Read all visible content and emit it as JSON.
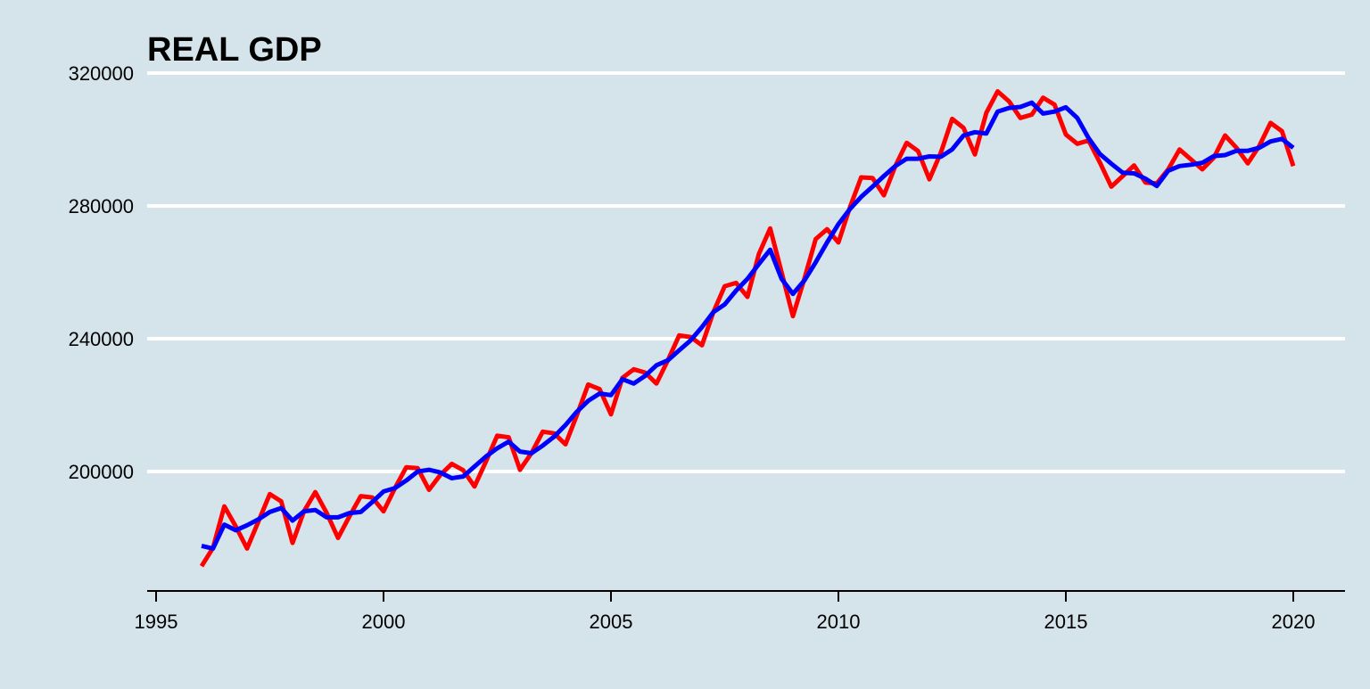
{
  "chart_data": {
    "type": "line",
    "title": "REAL GDP",
    "xlabel": "",
    "ylabel": "",
    "xlim": [
      1995,
      2021.2
    ],
    "ylim": [
      170000,
      321000
    ],
    "x_ticks": [
      1995,
      2000,
      2005,
      2010,
      2015,
      2020
    ],
    "x_tick_labels": [
      "1995",
      "2000",
      "2005",
      "2010",
      "2015",
      "2020"
    ],
    "y_ticks": [
      200000,
      240000,
      280000,
      320000
    ],
    "y_tick_labels": [
      "200000",
      "240000",
      "280000",
      "320000"
    ],
    "grid": "horizontal",
    "background_color": "#d5e4eb",
    "grid_color": "#ffffff",
    "series": [
      {
        "color": "#ff0000",
        "x": [
          1996.0,
          1996.25,
          1996.5,
          1996.75,
          1997.0,
          1997.25,
          1997.5,
          1997.75,
          1998.0,
          1998.25,
          1998.5,
          1998.75,
          1999.0,
          1999.25,
          1999.5,
          1999.75,
          2000.0,
          2000.25,
          2000.5,
          2000.75,
          2001.0,
          2001.25,
          2001.5,
          2001.75,
          2002.0,
          2002.25,
          2002.5,
          2002.75,
          2003.0,
          2003.25,
          2003.5,
          2003.75,
          2004.0,
          2004.25,
          2004.5,
          2004.75,
          2005.0,
          2005.25,
          2005.5,
          2005.75,
          2006.0,
          2006.25,
          2006.5,
          2006.75,
          2007.0,
          2007.25,
          2007.5,
          2007.75,
          2008.0,
          2008.25,
          2008.5,
          2008.75,
          2009.0,
          2009.25,
          2009.5,
          2009.75,
          2010.0,
          2010.25,
          2010.5,
          2010.75,
          2011.0,
          2011.25,
          2011.5,
          2011.75,
          2012.0,
          2012.25,
          2012.5,
          2012.75,
          2013.0,
          2013.25,
          2013.5,
          2013.75,
          2014.0,
          2014.25,
          2014.5,
          2014.75,
          2015.0,
          2015.25,
          2015.5,
          2015.75,
          2016.0,
          2016.25,
          2016.5,
          2016.75,
          2017.0,
          2017.25,
          2017.5,
          2017.75,
          2018.0,
          2018.25,
          2018.5,
          2018.75,
          2019.0,
          2019.25,
          2019.5,
          2019.75,
          2020.0
        ],
        "values": [
          171500,
          177000,
          189500,
          183500,
          176800,
          185000,
          193200,
          191000,
          178500,
          188000,
          193800,
          187500,
          180000,
          186500,
          192600,
          192200,
          188000,
          195000,
          201300,
          201000,
          194500,
          199000,
          202300,
          200400,
          195500,
          203000,
          210800,
          210300,
          200500,
          205500,
          212000,
          211500,
          208200,
          217000,
          226200,
          224800,
          217200,
          228200,
          230800,
          229800,
          226500,
          233500,
          241000,
          240500,
          238000,
          248000,
          255800,
          256800,
          252600,
          265500,
          273200,
          260000,
          246800,
          258000,
          270000,
          273000,
          269000,
          279500,
          288600,
          288400,
          283200,
          292000,
          299000,
          296500,
          288000,
          296000,
          306200,
          303500,
          295500,
          308000,
          314500,
          311500,
          306500,
          307500,
          312600,
          310500,
          301500,
          298700,
          299700,
          293000,
          285800,
          289000,
          292200,
          287000,
          286800,
          291000,
          297000,
          294000,
          291000,
          294500,
          301200,
          297500,
          292800,
          298000,
          305000,
          302500,
          292000
        ]
      },
      {
        "color": "#0000ff",
        "x": [
          1996.0,
          1996.25,
          1996.5,
          1996.75,
          1997.0,
          1997.25,
          1997.5,
          1997.75,
          1998.0,
          1998.25,
          1998.5,
          1998.75,
          1999.0,
          1999.25,
          1999.5,
          1999.75,
          2000.0,
          2000.25,
          2000.5,
          2000.75,
          2001.0,
          2001.25,
          2001.5,
          2001.75,
          2002.0,
          2002.25,
          2002.5,
          2002.75,
          2003.0,
          2003.25,
          2003.5,
          2003.75,
          2004.0,
          2004.25,
          2004.5,
          2004.75,
          2005.0,
          2005.25,
          2005.5,
          2005.75,
          2006.0,
          2006.25,
          2006.5,
          2006.75,
          2007.0,
          2007.25,
          2007.5,
          2007.75,
          2008.0,
          2008.25,
          2008.5,
          2008.75,
          2009.0,
          2009.25,
          2009.5,
          2009.75,
          2010.0,
          2010.25,
          2010.5,
          2010.75,
          2011.0,
          2011.25,
          2011.5,
          2011.75,
          2012.0,
          2012.25,
          2012.5,
          2012.75,
          2013.0,
          2013.25,
          2013.5,
          2013.75,
          2014.0,
          2014.25,
          2014.5,
          2014.75,
          2015.0,
          2015.25,
          2015.5,
          2015.75,
          2016.0,
          2016.25,
          2016.5,
          2016.75,
          2017.0,
          2017.25,
          2017.5,
          2017.75,
          2018.0,
          2018.25,
          2018.5,
          2018.75,
          2019.0,
          2019.25,
          2019.5,
          2019.75,
          2020.0
        ],
        "values": [
          177600,
          176800,
          184000,
          182300,
          183800,
          185600,
          187800,
          189000,
          185200,
          188000,
          188400,
          186200,
          186200,
          187500,
          187800,
          190800,
          194000,
          195000,
          197300,
          200000,
          200500,
          199700,
          198000,
          198500,
          201500,
          204500,
          207000,
          209000,
          206000,
          205500,
          207800,
          210500,
          214000,
          218000,
          221300,
          223500,
          223000,
          227800,
          226500,
          228800,
          232000,
          233500,
          236500,
          239500,
          243500,
          248000,
          250300,
          254500,
          258000,
          262500,
          266800,
          258000,
          253500,
          257500,
          263000,
          269000,
          274500,
          279000,
          282700,
          285800,
          289000,
          292000,
          294200,
          294200,
          294900,
          294800,
          297000,
          301200,
          302200,
          301800,
          308400,
          309500,
          309800,
          311100,
          307800,
          308400,
          309700,
          306500,
          300400,
          295600,
          292700,
          290000,
          289800,
          288200,
          286000,
          290600,
          292000,
          292400,
          293000,
          295000,
          295300,
          296600,
          296600,
          297500,
          299400,
          300200,
          297500
        ]
      }
    ]
  }
}
